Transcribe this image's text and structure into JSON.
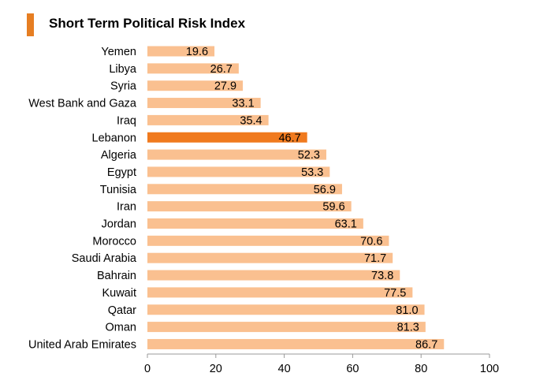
{
  "colors": {
    "accent": "#E67E22",
    "bar": "#FAC090",
    "bar_highlight": "#F07A1E",
    "axis": "#999999"
  },
  "chart_data": {
    "type": "bar",
    "orientation": "horizontal",
    "title": "Short Term Political Risk Index",
    "xlabel": "",
    "ylabel": "",
    "xlim": [
      0,
      100
    ],
    "x_ticks": [
      0,
      20,
      40,
      60,
      80,
      100
    ],
    "highlight_category": "Lebanon",
    "grid": false,
    "legend": "none",
    "categories": [
      "Yemen",
      "Libya",
      "Syria",
      "West Bank and Gaza",
      "Iraq",
      "Lebanon",
      "Algeria",
      "Egypt",
      "Tunisia",
      "Iran",
      "Jordan",
      "Morocco",
      "Saudi Arabia",
      "Bahrain",
      "Kuwait",
      "Qatar",
      "Oman",
      "United Arab Emirates"
    ],
    "values": [
      19.6,
      26.7,
      27.9,
      33.1,
      35.4,
      46.7,
      52.3,
      53.3,
      56.9,
      59.6,
      63.1,
      70.6,
      71.7,
      73.8,
      77.5,
      81.0,
      81.3,
      86.7
    ],
    "value_labels": [
      "19.6",
      "26.7",
      "27.9",
      "33.1",
      "35.4",
      "46.7",
      "52.3",
      "53.3",
      "56.9",
      "59.6",
      "63.1",
      "70.6",
      "71.7",
      "73.8",
      "77.5",
      "81.0",
      "81.3",
      "86.7"
    ]
  }
}
